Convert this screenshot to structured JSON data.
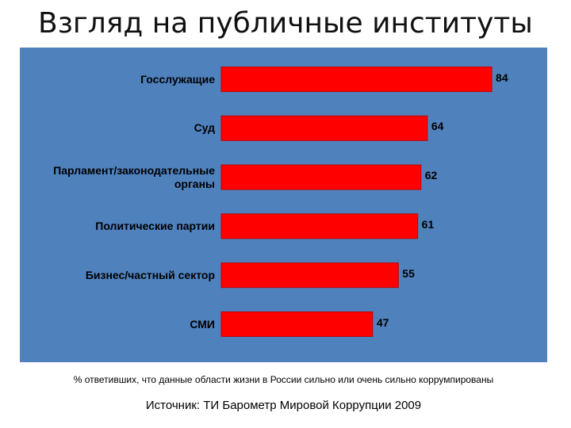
{
  "title": "Взгляд на публичные институты",
  "note": "% ответивших, что данные области жизни в России сильно или очень сильно коррумпированы",
  "source": "Источник: ТИ Барометр Мировой Коррупции 2009",
  "colors": {
    "panel": "#4f81bd",
    "bar": "#ff0000",
    "bar_edge": "#c00000"
  },
  "chart_data": {
    "type": "bar",
    "orientation": "horizontal",
    "categories": [
      "Госслужащие",
      "Суд",
      "Парламент/законодательные органы",
      "Политические партии",
      "Бизнес/частный сектор",
      "СМИ"
    ],
    "values": [
      84,
      64,
      62,
      61,
      55,
      47
    ],
    "title": "",
    "xlabel": "",
    "ylabel": "",
    "xlim": [
      0,
      85
    ],
    "grid": false,
    "legend": "none"
  }
}
